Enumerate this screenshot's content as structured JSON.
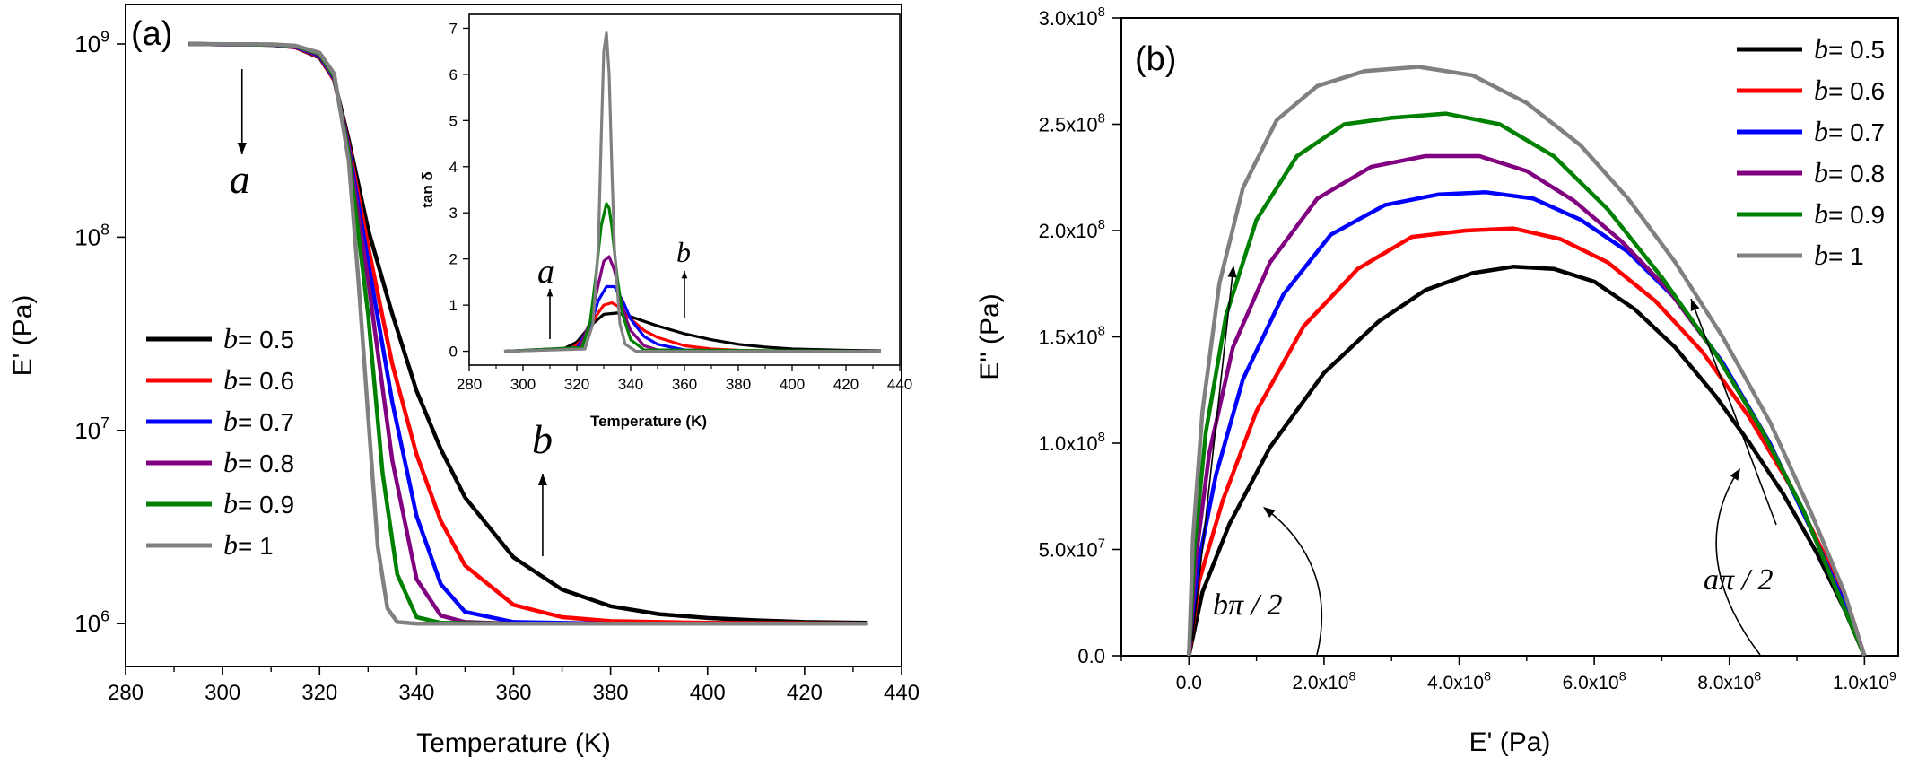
{
  "chart_data": [
    {
      "panel_label": "(a)",
      "type": "line",
      "xlabel": "Temperature (K)",
      "ylabel": "E' (Pa)",
      "xlim": [
        280,
        440
      ],
      "ylim": [
        600000,
        1600000000
      ],
      "yscale": "log",
      "xticks": [
        "280",
        "300",
        "320",
        "340",
        "360",
        "380",
        "400",
        "420",
        "440"
      ],
      "yticks": [
        {
          "base": "10",
          "exp": "6"
        },
        {
          "base": "10",
          "exp": "7"
        },
        {
          "base": "10",
          "exp": "8"
        },
        {
          "base": "10",
          "exp": "9"
        }
      ],
      "legend_position": "middle-left",
      "legend_prefix": "b",
      "series": [
        {
          "name": "= 0.5",
          "color": "#000000",
          "x": [
            293,
            310,
            315,
            320,
            323,
            326,
            330,
            335,
            340,
            345,
            350,
            360,
            370,
            380,
            390,
            400,
            410,
            420,
            433
          ],
          "y": [
            1000000000,
            990000000,
            960000000,
            850000000,
            650000000,
            320000000,
            110000000,
            40000000,
            16000000,
            8000000,
            4500000,
            2200000,
            1500000,
            1230000,
            1120000,
            1070000,
            1040000,
            1020000,
            1010000
          ]
        },
        {
          "name": "= 0.6",
          "color": "#ff0000",
          "x": [
            293,
            310,
            315,
            320,
            323,
            326,
            330,
            335,
            340,
            345,
            350,
            360,
            370,
            380,
            400,
            433
          ],
          "y": [
            1000000000,
            990000000,
            960000000,
            860000000,
            650000000,
            300000000,
            90000000,
            22000000,
            7500000,
            3400000,
            2000000,
            1250000,
            1080000,
            1030000,
            1010000,
            1000000
          ]
        },
        {
          "name": "= 0.7",
          "color": "#0000ff",
          "x": [
            293,
            310,
            315,
            320,
            323,
            326,
            330,
            335,
            340,
            345,
            350,
            360,
            380,
            433
          ],
          "y": [
            1000000000,
            990000000,
            965000000,
            870000000,
            660000000,
            290000000,
            75000000,
            14000000,
            3600000,
            1600000,
            1150000,
            1020000,
            1000000,
            1000000
          ]
        },
        {
          "name": "= 0.8",
          "color": "#800080",
          "x": [
            293,
            310,
            315,
            320,
            323,
            326,
            330,
            335,
            340,
            345,
            350,
            360,
            433
          ],
          "y": [
            1000000000,
            990000000,
            970000000,
            880000000,
            670000000,
            280000000,
            60000000,
            7000000,
            1700000,
            1100000,
            1020000,
            1000000,
            1000000
          ]
        },
        {
          "name": "= 0.9",
          "color": "#008000",
          "x": [
            293,
            310,
            315,
            320,
            323,
            326,
            330,
            333,
            336,
            340,
            345,
            360,
            433
          ],
          "y": [
            1000000000,
            992000000,
            975000000,
            890000000,
            680000000,
            270000000,
            40000000,
            6000000,
            1800000,
            1080000,
            1010000,
            1000000,
            1000000
          ]
        },
        {
          "name": "= 1",
          "color": "#808080",
          "x": [
            293,
            310,
            315,
            320,
            323,
            326,
            328,
            330,
            332,
            334,
            336,
            340,
            433
          ],
          "y": [
            1000000000,
            995000000,
            980000000,
            900000000,
            700000000,
            250000000,
            60000000,
            12000000,
            2500000,
            1200000,
            1020000,
            1000000,
            1000000
          ]
        }
      ],
      "annotations": [
        {
          "text": "a",
          "x": 304,
          "y": 90000000
        },
        {
          "text": "b",
          "x": 366,
          "y": 7000000
        }
      ],
      "inset": {
        "type": "line",
        "xlabel": "Temperature (K)",
        "ylabel": "tan δ",
        "xlim": [
          280,
          440
        ],
        "ylim": [
          -0.3,
          7.3
        ],
        "xticks": [
          "280",
          "300",
          "320",
          "340",
          "360",
          "380",
          "400",
          "420",
          "440"
        ],
        "yticks": [
          "0",
          "1",
          "2",
          "3",
          "4",
          "5",
          "6",
          "7"
        ],
        "series": [
          {
            "name": "= 0.5",
            "color": "#000000",
            "x": [
              293,
              315,
              320,
              325,
              330,
              335,
              340,
              350,
              360,
              370,
              380,
              390,
              400,
              420,
              433
            ],
            "y": [
              0,
              0.05,
              0.2,
              0.55,
              0.8,
              0.83,
              0.75,
              0.55,
              0.38,
              0.25,
              0.15,
              0.09,
              0.05,
              0.02,
              0.01
            ]
          },
          {
            "name": "= 0.6",
            "color": "#ff0000",
            "x": [
              293,
              318,
              323,
              327,
              330,
              333,
              336,
              340,
              345,
              350,
              360,
              370,
              380,
              400,
              433
            ],
            "y": [
              0,
              0.05,
              0.3,
              0.75,
              1.0,
              1.05,
              0.95,
              0.7,
              0.45,
              0.3,
              0.12,
              0.05,
              0.02,
              0,
              0
            ]
          },
          {
            "name": "= 0.7",
            "color": "#0000ff",
            "x": [
              293,
              320,
              325,
              328,
              331,
              334,
              337,
              340,
              345,
              350,
              360,
              380,
              433
            ],
            "y": [
              0,
              0.07,
              0.55,
              1.1,
              1.4,
              1.4,
              1.1,
              0.7,
              0.32,
              0.15,
              0.03,
              0,
              0
            ]
          },
          {
            "name": "= 0.8",
            "color": "#800080",
            "x": [
              293,
              321,
              325,
              328,
              330,
              332,
              334,
              336,
              338,
              340,
              345,
              350,
              360,
              433
            ],
            "y": [
              0,
              0.08,
              0.65,
              1.45,
              1.95,
              2.05,
              1.75,
              1.2,
              0.75,
              0.45,
              0.12,
              0.03,
              0,
              0
            ]
          },
          {
            "name": "= 0.9",
            "color": "#008000",
            "x": [
              293,
              322,
              325,
              327,
              329,
              331,
              332,
              333,
              335,
              337,
              340,
              345,
              433
            ],
            "y": [
              0,
              0.08,
              0.65,
              1.6,
              2.7,
              3.2,
              3.1,
              2.7,
              1.6,
              0.8,
              0.25,
              0.03,
              0
            ]
          },
          {
            "name": "= 1",
            "color": "#808080",
            "x": [
              293,
              323,
              326,
              328,
              329,
              330,
              331,
              332,
              333,
              334,
              336,
              338,
              342,
              433
            ],
            "y": [
              0,
              0.05,
              0.6,
              2.3,
              4.5,
              6.5,
              6.9,
              6.0,
              4.0,
              2.2,
              0.6,
              0.15,
              0,
              0
            ]
          }
        ],
        "annotations": [
          {
            "text": "a",
            "x": 310,
            "y": 2.5
          },
          {
            "text": "b",
            "x": 360,
            "y": 3.3
          }
        ]
      }
    },
    {
      "panel_label": "(b)",
      "type": "line",
      "xlabel": "E' (Pa)",
      "ylabel": "E'' (Pa)",
      "xlim": [
        -100000000,
        1050000000
      ],
      "ylim": [
        0,
        300000000
      ],
      "xticks": [
        {
          "v": 0,
          "m": "0.0",
          "e": ""
        },
        {
          "v": 200000000,
          "m": "2.0x10",
          "e": "8"
        },
        {
          "v": 400000000,
          "m": "4.0x10",
          "e": "8"
        },
        {
          "v": 600000000,
          "m": "6.0x10",
          "e": "8"
        },
        {
          "v": 800000000,
          "m": "8.0x10",
          "e": "8"
        },
        {
          "v": 1000000000,
          "m": "1.0x10",
          "e": "9"
        }
      ],
      "yticks": [
        {
          "v": 0,
          "m": "0.0",
          "e": ""
        },
        {
          "v": 50000000,
          "m": "5.0x10",
          "e": "7"
        },
        {
          "v": 100000000,
          "m": "1.0x10",
          "e": "8"
        },
        {
          "v": 150000000,
          "m": "1.5x10",
          "e": "8"
        },
        {
          "v": 200000000,
          "m": "2.0x10",
          "e": "8"
        },
        {
          "v": 250000000,
          "m": "2.5x10",
          "e": "8"
        },
        {
          "v": 300000000,
          "m": "3.0x10",
          "e": "8"
        }
      ],
      "legend_position": "top-right",
      "legend_prefix": "b",
      "series": [
        {
          "name": "= 0.5",
          "color": "#000000",
          "x": [
            0,
            20000000,
            60000000,
            120000000,
            200000000,
            280000000,
            350000000,
            420000000,
            480000000,
            540000000,
            600000000,
            660000000,
            720000000,
            780000000,
            830000000,
            880000000,
            930000000,
            970000000,
            1000000000
          ],
          "y": [
            0,
            30000000,
            62000000,
            98000000,
            133000000,
            157000000,
            172000000,
            180000000,
            183000000,
            182000000,
            176000000,
            163000000,
            145000000,
            122000000,
            100000000,
            76000000,
            48000000,
            22000000,
            0
          ]
        },
        {
          "name": "= 0.6",
          "color": "#ff0000",
          "x": [
            0,
            15000000,
            50000000,
            100000000,
            170000000,
            250000000,
            330000000,
            410000000,
            480000000,
            550000000,
            620000000,
            690000000,
            760000000,
            830000000,
            890000000,
            940000000,
            980000000,
            1000000000
          ],
          "y": [
            0,
            35000000,
            73000000,
            115000000,
            155000000,
            182000000,
            197000000,
            200000000,
            201000000,
            196000000,
            185000000,
            167000000,
            143000000,
            112000000,
            80000000,
            48000000,
            20000000,
            0
          ]
        },
        {
          "name": "= 0.7",
          "color": "#0000ff",
          "x": [
            0,
            12000000,
            40000000,
            80000000,
            140000000,
            210000000,
            290000000,
            370000000,
            440000000,
            510000000,
            580000000,
            650000000,
            720000000,
            790000000,
            860000000,
            920000000,
            970000000,
            1000000000
          ],
          "y": [
            0,
            40000000,
            85000000,
            130000000,
            170000000,
            198000000,
            212000000,
            217000000,
            218000000,
            215000000,
            205000000,
            190000000,
            168000000,
            138000000,
            100000000,
            60000000,
            25000000,
            0
          ]
        },
        {
          "name": "= 0.8",
          "color": "#800080",
          "x": [
            0,
            10000000,
            30000000,
            65000000,
            120000000,
            190000000,
            270000000,
            350000000,
            430000000,
            500000000,
            570000000,
            640000000,
            710000000,
            780000000,
            850000000,
            910000000,
            960000000,
            1000000000
          ],
          "y": [
            0,
            45000000,
            95000000,
            145000000,
            185000000,
            215000000,
            230000000,
            235000000,
            235000000,
            228000000,
            214000000,
            195000000,
            172000000,
            142000000,
            105000000,
            68000000,
            30000000,
            0
          ]
        },
        {
          "name": "= 0.9",
          "color": "#008000",
          "x": [
            0,
            8000000,
            25000000,
            55000000,
            100000000,
            160000000,
            230000000,
            300000000,
            380000000,
            460000000,
            540000000,
            620000000,
            700000000,
            780000000,
            850000000,
            910000000,
            960000000,
            1000000000
          ],
          "y": [
            0,
            50000000,
            105000000,
            160000000,
            205000000,
            235000000,
            250000000,
            253000000,
            255000000,
            250000000,
            235000000,
            210000000,
            178000000,
            142000000,
            105000000,
            68000000,
            30000000,
            0
          ]
        },
        {
          "name": "= 1",
          "color": "#808080",
          "x": [
            0,
            6000000,
            20000000,
            45000000,
            80000000,
            130000000,
            190000000,
            260000000,
            340000000,
            420000000,
            500000000,
            580000000,
            650000000,
            720000000,
            790000000,
            860000000,
            920000000,
            970000000,
            1000000000
          ],
          "y": [
            0,
            55000000,
            115000000,
            175000000,
            220000000,
            252000000,
            268000000,
            275000000,
            277000000,
            273000000,
            260000000,
            240000000,
            215000000,
            185000000,
            150000000,
            110000000,
            68000000,
            30000000,
            0
          ]
        }
      ],
      "annotations": [
        {
          "text": "bπ / 2",
          "x": 110000000,
          "y": 27000000
        },
        {
          "text": "aπ / 2",
          "x": 830000000,
          "y": 42000000
        }
      ]
    }
  ]
}
